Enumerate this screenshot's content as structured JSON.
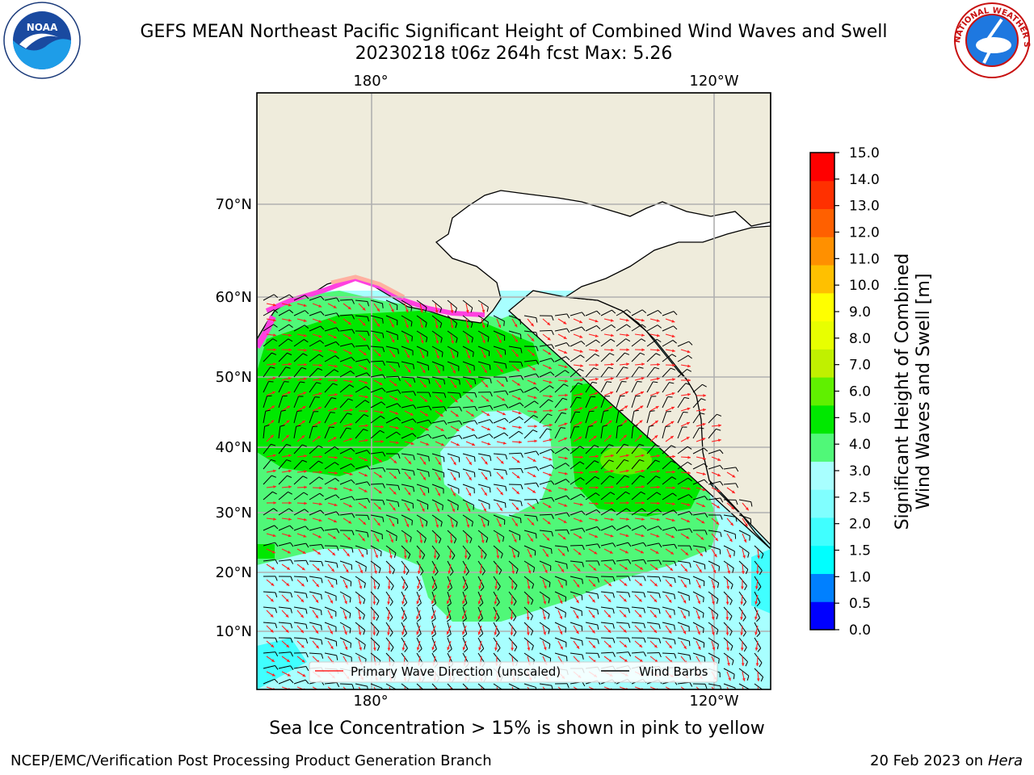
{
  "title_line1": "GEFS MEAN Northeast Pacific Significant Height of Combined Wind Waves and Swell",
  "title_line2": "20230218 t06z 264h fcst   Max: 5.26",
  "logos": {
    "left": "NOAA",
    "right": "NATIONAL WEATHER SERVICE"
  },
  "map": {
    "lon_labels": [
      "180°",
      "120°W"
    ],
    "lat_labels": [
      "70°N",
      "60°N",
      "50°N",
      "40°N",
      "30°N",
      "20°N",
      "10°N"
    ],
    "legend": {
      "wave": "Primary Wave Direction (unscaled)",
      "barb": "Wind Barbs"
    },
    "colors": {
      "land": "#efecdc",
      "wave_arrow": "#ff2020",
      "barb": "#000000"
    }
  },
  "colorbar": {
    "label_line1": "Significant Height of Combined",
    "label_line2": "Wind Waves and Swell [m]",
    "ticks": [
      "0.0",
      "0.5",
      "1.0",
      "1.5",
      "2.0",
      "2.5",
      "3.0",
      "4.0",
      "5.0",
      "6.0",
      "7.0",
      "8.0",
      "9.0",
      "10.0",
      "11.0",
      "12.0",
      "13.0",
      "14.0",
      "15.0"
    ],
    "colors": [
      "#0000ff",
      "#0080ff",
      "#00ffff",
      "#40ffff",
      "#80ffff",
      "#a8ffff",
      "#50f878",
      "#00e800",
      "#60f000",
      "#c0f000",
      "#e8ff00",
      "#ffff00",
      "#ffc000",
      "#ff9000",
      "#ff6000",
      "#ff3000",
      "#ff0000"
    ]
  },
  "ice_note": "Sea Ice Concentration > 15% is shown in pink to yellow",
  "footer": {
    "credit": "NCEP/EMC/Verification Post Processing Product Generation Branch",
    "date": "20 Feb 2023 on",
    "machine": "Hera"
  }
}
